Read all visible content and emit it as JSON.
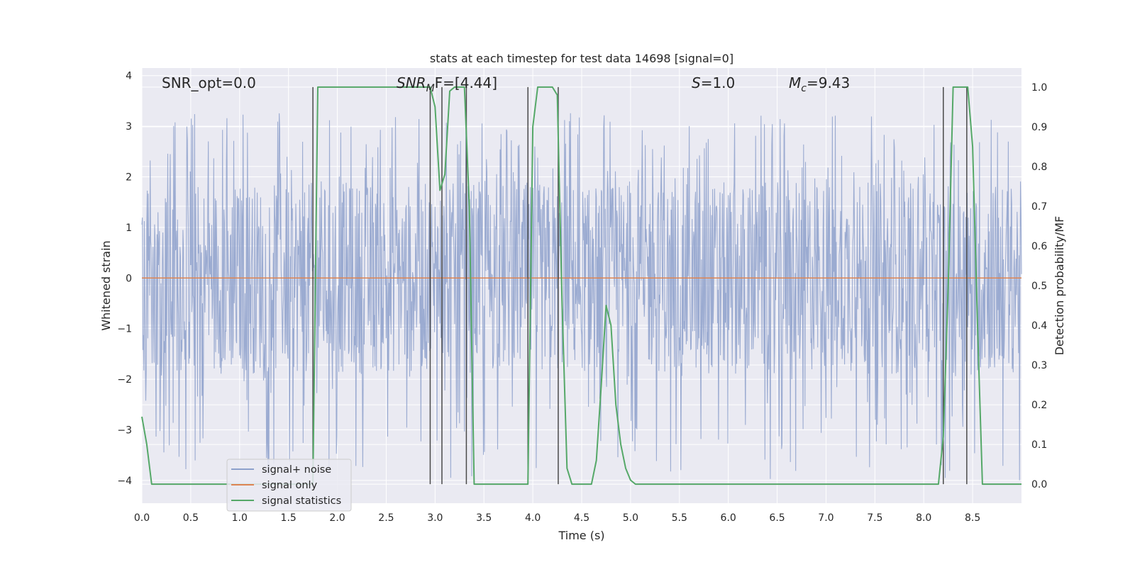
{
  "chart_data": {
    "type": "line",
    "title": "stats at each timestep for test data 14698 [signal=0]",
    "xlabel": "Time (s)",
    "ylabel": "Whitened strain",
    "y2label": "Detection probability/MF",
    "xlim": [
      0,
      9.0
    ],
    "ylim": [
      -4.45,
      4.15
    ],
    "y2lim": [
      -0.048,
      1.048
    ],
    "x_ticks": [
      "0.0",
      "0.5",
      "1.0",
      "1.5",
      "2.0",
      "2.5",
      "3.0",
      "3.5",
      "4.0",
      "4.5",
      "5.0",
      "5.5",
      "6.0",
      "6.5",
      "7.0",
      "7.5",
      "8.0",
      "8.5"
    ],
    "y_ticks": [
      "4",
      "3",
      "2",
      "1",
      "0",
      "−1",
      "−2",
      "−3",
      "−4"
    ],
    "y2_ticks": [
      "1.0",
      "0.9",
      "0.8",
      "0.7",
      "0.6",
      "0.5",
      "0.4",
      "0.3",
      "0.2",
      "0.1",
      "0.0"
    ],
    "grid": true,
    "legend_position": "lower-left",
    "annotations": {
      "snr_opt": "SNR_opt=0.0",
      "snr_mf_base": "SNR",
      "snr_mf_sub": "M",
      "snr_mf_rest": "F=[4.44]",
      "s_sym": "S",
      "s_val": "=1.0",
      "mc_sym": "M",
      "mc_sub": "c",
      "mc_val": "=9.43"
    },
    "vlines_x": [
      1.75,
      2.95,
      3.07,
      3.32,
      3.95,
      4.26,
      8.2,
      8.44
    ],
    "vlines_ylim_right": [
      0.0,
      1.0
    ],
    "series": [
      {
        "name": "signal+ noise",
        "color": "#8da0cb",
        "axis": "left",
        "envelope": {
          "typical_abs": 1.9,
          "peak_max": 3.3,
          "peak_min": -4.0,
          "samples": 1800
        }
      },
      {
        "name": "signal only",
        "color": "#dd8452",
        "axis": "left",
        "x": [
          0,
          9.0
        ],
        "y": [
          0,
          0
        ]
      },
      {
        "name": "signal statistics",
        "color": "#55a868",
        "axis": "right",
        "x": [
          0.0,
          0.05,
          0.1,
          0.15,
          1.7,
          1.75,
          1.8,
          2.9,
          2.95,
          3.0,
          3.05,
          3.1,
          3.15,
          3.2,
          3.3,
          3.35,
          3.4,
          3.45,
          3.9,
          3.95,
          4.0,
          4.05,
          4.2,
          4.25,
          4.3,
          4.35,
          4.4,
          4.45,
          4.6,
          4.65,
          4.7,
          4.75,
          4.8,
          4.85,
          4.9,
          4.95,
          5.0,
          5.05,
          5.1,
          6.8,
          6.9,
          8.15,
          8.2,
          8.25,
          8.3,
          8.4,
          8.45,
          8.5,
          8.55,
          8.6,
          8.65,
          9.0
        ],
        "y": [
          0.17,
          0.1,
          0.0,
          0.0,
          0.0,
          0.0,
          1.0,
          1.0,
          1.0,
          0.95,
          0.74,
          0.78,
          0.99,
          1.0,
          1.0,
          0.7,
          0.0,
          0.0,
          0.0,
          0.0,
          0.9,
          1.0,
          1.0,
          0.98,
          0.45,
          0.04,
          0.0,
          0.0,
          0.0,
          0.06,
          0.25,
          0.45,
          0.4,
          0.2,
          0.1,
          0.04,
          0.01,
          0.0,
          0.0,
          0.0,
          0.0,
          0.0,
          0.12,
          0.5,
          1.0,
          1.0,
          1.0,
          0.85,
          0.4,
          0.0,
          0.0,
          0.0
        ]
      }
    ]
  }
}
